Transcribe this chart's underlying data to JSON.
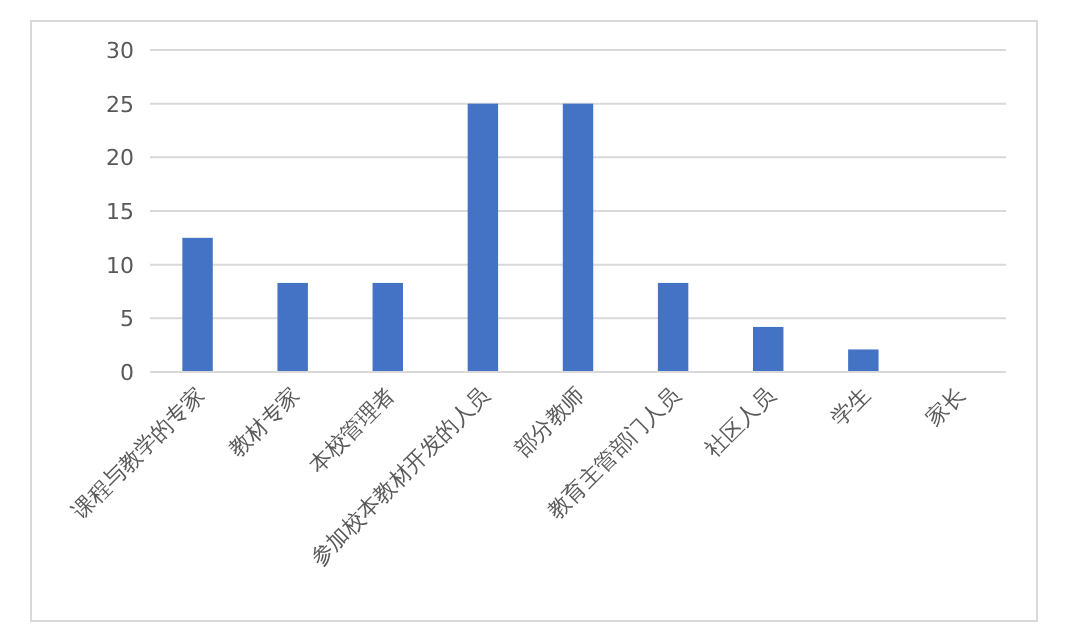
{
  "chart_data": {
    "type": "bar",
    "categories": [
      "课程与教学的专家",
      "教材专家",
      "本校管理者",
      "参加校本教材开发的人员",
      "部分教师",
      "教育主管部门人员",
      "社区人员",
      "学生",
      "家长"
    ],
    "values": [
      12.5,
      8.3,
      8.3,
      25,
      25,
      8.3,
      4.2,
      2.1,
      0
    ],
    "color": "#4472c4",
    "ylim": [
      0,
      30
    ],
    "yticks": [
      0,
      5,
      10,
      15,
      20,
      25,
      30
    ],
    "grid": "y"
  }
}
